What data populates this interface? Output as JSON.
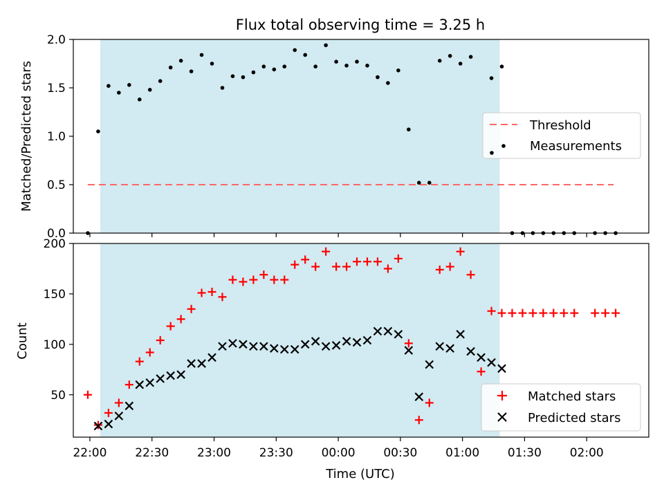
{
  "title": "Flux total observing time = 3.25 h",
  "xlabel": "Time (UTC)",
  "x_tick_labels": [
    "22:00",
    "22:30",
    "23:00",
    "23:30",
    "00:00",
    "00:30",
    "01:00",
    "01:30",
    "02:00"
  ],
  "colors": {
    "shade": "#add8e6",
    "threshold": "#ff6666",
    "measurements": "#000000",
    "matched": "#ff0000",
    "predicted": "#000000"
  },
  "chart_data": [
    {
      "type": "scatter",
      "ylabel": "Matched/Predicted stars",
      "xlim": [
        "21:52",
        "02:30"
      ],
      "ylim": [
        0,
        2.0
      ],
      "y_ticks": [
        "0.0",
        "0.5",
        "1.0",
        "1.5",
        "2.0"
      ],
      "shaded_interval": [
        "22:05",
        "01:18"
      ],
      "threshold": {
        "name": "Threshold",
        "y": 0.5,
        "x_range": [
          "21:59",
          "02:13"
        ]
      },
      "legend": [
        "Threshold",
        "Measurements"
      ],
      "legend_position": "center-right",
      "series": [
        {
          "name": "Measurements",
          "points": [
            [
              "21:59",
              0.0
            ],
            [
              "22:04",
              1.05
            ],
            [
              "22:09",
              1.52
            ],
            [
              "22:14",
              1.45
            ],
            [
              "22:19",
              1.53
            ],
            [
              "22:24",
              1.38
            ],
            [
              "22:29",
              1.48
            ],
            [
              "22:34",
              1.57
            ],
            [
              "22:39",
              1.71
            ],
            [
              "22:44",
              1.78
            ],
            [
              "22:49",
              1.67
            ],
            [
              "22:54",
              1.84
            ],
            [
              "22:59",
              1.75
            ],
            [
              "23:04",
              1.5
            ],
            [
              "23:09",
              1.62
            ],
            [
              "23:14",
              1.61
            ],
            [
              "23:19",
              1.66
            ],
            [
              "23:24",
              1.72
            ],
            [
              "23:29",
              1.69
            ],
            [
              "23:34",
              1.72
            ],
            [
              "23:39",
              1.89
            ],
            [
              "23:44",
              1.84
            ],
            [
              "23:49",
              1.72
            ],
            [
              "23:54",
              1.94
            ],
            [
              "23:59",
              1.77
            ],
            [
              "00:04",
              1.73
            ],
            [
              "00:09",
              1.77
            ],
            [
              "00:14",
              1.73
            ],
            [
              "00:19",
              1.61
            ],
            [
              "00:24",
              1.55
            ],
            [
              "00:29",
              1.68
            ],
            [
              "00:34",
              1.07
            ],
            [
              "00:39",
              0.52
            ],
            [
              "00:44",
              0.52
            ],
            [
              "00:49",
              1.78
            ],
            [
              "00:54",
              1.83
            ],
            [
              "00:59",
              1.75
            ],
            [
              "01:04",
              1.82
            ],
            [
              "01:14",
              1.6
            ],
            [
              "01:19",
              1.72
            ],
            [
              "01:24",
              0.0
            ],
            [
              "01:29",
              0.0
            ],
            [
              "01:34",
              0.0
            ],
            [
              "01:39",
              0.0
            ],
            [
              "01:44",
              0.0
            ],
            [
              "01:49",
              0.0
            ],
            [
              "01:54",
              0.0
            ],
            [
              "02:04",
              0.0
            ],
            [
              "02:09",
              0.0
            ],
            [
              "02:14",
              0.0
            ]
          ]
        }
      ]
    },
    {
      "type": "scatter",
      "ylabel": "Count",
      "xlim": [
        "21:52",
        "02:30"
      ],
      "ylim": [
        8,
        200
      ],
      "y_ticks": [
        "50",
        "100",
        "150",
        "200"
      ],
      "shaded_interval": [
        "22:05",
        "01:18"
      ],
      "legend": [
        "Matched stars",
        "Predicted stars"
      ],
      "legend_position": "lower right",
      "series": [
        {
          "name": "Matched stars",
          "marker": "+",
          "points": [
            [
              "21:59",
              50
            ],
            [
              "22:04",
              20
            ],
            [
              "22:09",
              32
            ],
            [
              "22:14",
              42
            ],
            [
              "22:19",
              60
            ],
            [
              "22:24",
              83
            ],
            [
              "22:29",
              92
            ],
            [
              "22:34",
              104
            ],
            [
              "22:39",
              118
            ],
            [
              "22:44",
              125
            ],
            [
              "22:49",
              135
            ],
            [
              "22:54",
              151
            ],
            [
              "22:59",
              152
            ],
            [
              "23:04",
              147
            ],
            [
              "23:09",
              164
            ],
            [
              "23:14",
              162
            ],
            [
              "23:19",
              164
            ],
            [
              "23:24",
              169
            ],
            [
              "23:29",
              164
            ],
            [
              "23:34",
              164
            ],
            [
              "23:39",
              179
            ],
            [
              "23:44",
              184
            ],
            [
              "23:49",
              177
            ],
            [
              "23:54",
              192
            ],
            [
              "23:59",
              177
            ],
            [
              "00:04",
              177
            ],
            [
              "00:09",
              182
            ],
            [
              "00:14",
              182
            ],
            [
              "00:19",
              182
            ],
            [
              "00:24",
              175
            ],
            [
              "00:29",
              185
            ],
            [
              "00:34",
              101
            ],
            [
              "00:39",
              25
            ],
            [
              "00:44",
              42
            ],
            [
              "00:49",
              174
            ],
            [
              "00:54",
              177
            ],
            [
              "00:59",
              192
            ],
            [
              "01:04",
              169
            ],
            [
              "01:09",
              73
            ],
            [
              "01:14",
              133
            ],
            [
              "01:19",
              131
            ],
            [
              "01:24",
              131
            ],
            [
              "01:29",
              131
            ],
            [
              "01:34",
              131
            ],
            [
              "01:39",
              131
            ],
            [
              "01:44",
              131
            ],
            [
              "01:49",
              131
            ],
            [
              "01:54",
              131
            ],
            [
              "02:04",
              131
            ],
            [
              "02:09",
              131
            ],
            [
              "02:14",
              131
            ]
          ]
        },
        {
          "name": "Predicted stars",
          "marker": "x",
          "points": [
            [
              "22:04",
              19
            ],
            [
              "22:09",
              21
            ],
            [
              "22:14",
              29
            ],
            [
              "22:19",
              39
            ],
            [
              "22:24",
              60
            ],
            [
              "22:29",
              62
            ],
            [
              "22:34",
              66
            ],
            [
              "22:39",
              69
            ],
            [
              "22:44",
              70
            ],
            [
              "22:49",
              81
            ],
            [
              "22:54",
              81
            ],
            [
              "22:59",
              87
            ],
            [
              "23:04",
              98
            ],
            [
              "23:09",
              101
            ],
            [
              "23:14",
              100
            ],
            [
              "23:19",
              98
            ],
            [
              "23:24",
              98
            ],
            [
              "23:29",
              96
            ],
            [
              "23:34",
              95
            ],
            [
              "23:39",
              95
            ],
            [
              "23:44",
              100
            ],
            [
              "23:49",
              103
            ],
            [
              "23:54",
              98
            ],
            [
              "23:59",
              99
            ],
            [
              "00:04",
              103
            ],
            [
              "00:09",
              102
            ],
            [
              "00:14",
              104
            ],
            [
              "00:19",
              113
            ],
            [
              "00:24",
              113
            ],
            [
              "00:29",
              110
            ],
            [
              "00:34",
              94
            ],
            [
              "00:39",
              48
            ],
            [
              "00:44",
              80
            ],
            [
              "00:49",
              98
            ],
            [
              "00:54",
              96
            ],
            [
              "00:59",
              110
            ],
            [
              "01:04",
              93
            ],
            [
              "01:09",
              87
            ],
            [
              "01:14",
              82
            ],
            [
              "01:19",
              76
            ]
          ]
        }
      ]
    }
  ]
}
